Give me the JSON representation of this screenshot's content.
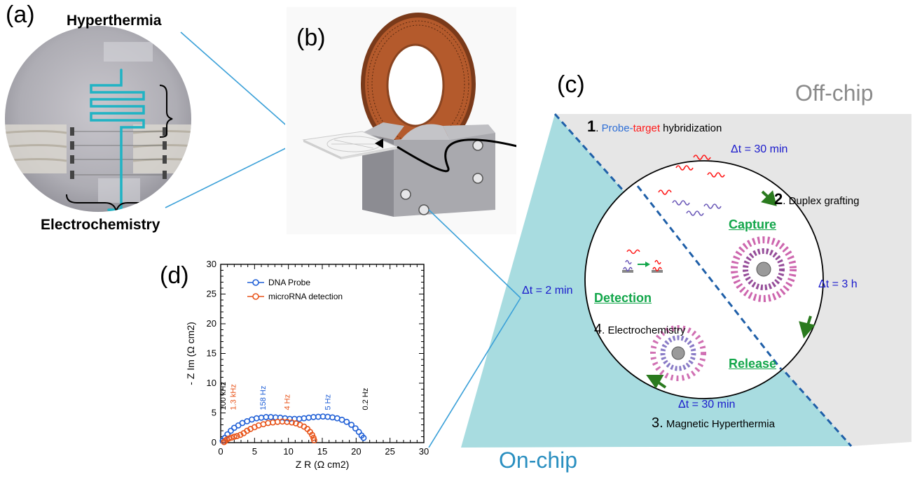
{
  "panels": {
    "a": {
      "label": "(a)",
      "top_label": "Hyperthermia",
      "bottom_label": "Electrochemistry"
    },
    "b": {
      "label": "(b)"
    },
    "c": {
      "label": "(c)",
      "off_chip": "Off-chip",
      "on_chip": "On-chip",
      "step1": {
        "num": "1",
        "probe": "Probe",
        "dash": "-",
        "target": "target",
        "rest": " hybridization"
      },
      "step2": {
        "num": "2",
        "text": ". Duplex grafting"
      },
      "step3": {
        "num": "3.",
        "text": " Magnetic Hyperthermia"
      },
      "step4": {
        "num": "4",
        "text": ". Electrochemistry"
      },
      "capture": "Capture",
      "release": "Release",
      "detection": "Detection",
      "dt1": "Δt = 30 min",
      "dt2": "Δt = 3 h",
      "dt3": "Δt = 30 min",
      "dt4": "Δt = 2 min",
      "colors": {
        "blue_text": "#1a1acc",
        "green_text": "#12a64a",
        "arrow_green": "#2a7a1e",
        "probe_blue": "#2f6fd6",
        "target_red": "#ff1a1a",
        "on_chip_fill": "#a8dce0",
        "off_chip_fill": "#e6e6e6",
        "dash_blue": "#1f5fa8"
      }
    },
    "d": {
      "label": "(d)"
    }
  },
  "chart_data": {
    "type": "scatter",
    "xlabel": "Z R (Ω cm2)",
    "ylabel": "- Z Im (Ω cm2)",
    "xlim": [
      0,
      30
    ],
    "ylim": [
      0,
      30
    ],
    "xticks": [
      "0",
      "5",
      "10",
      "15",
      "20",
      "25",
      "30"
    ],
    "yticks": [
      "0",
      "5",
      "10",
      "15",
      "20",
      "25",
      "30"
    ],
    "legend_position": "top-left",
    "series": [
      {
        "name": "DNA Probe",
        "color": "#1f5fd6",
        "points": [
          [
            0.3,
            0.3
          ],
          [
            0.6,
            0.8
          ],
          [
            1.0,
            1.4
          ],
          [
            1.5,
            2.0
          ],
          [
            2.0,
            2.5
          ],
          [
            2.6,
            2.9
          ],
          [
            3.2,
            3.3
          ],
          [
            3.9,
            3.6
          ],
          [
            4.6,
            3.9
          ],
          [
            5.3,
            4.1
          ],
          [
            6.0,
            4.2
          ],
          [
            6.7,
            4.3
          ],
          [
            7.4,
            4.3
          ],
          [
            8.1,
            4.25
          ],
          [
            8.8,
            4.2
          ],
          [
            9.5,
            4.1
          ],
          [
            10.2,
            4.0
          ],
          [
            10.9,
            4.0
          ],
          [
            11.6,
            4.0
          ],
          [
            12.3,
            4.1
          ],
          [
            13.0,
            4.2
          ],
          [
            13.7,
            4.3
          ],
          [
            14.4,
            4.35
          ],
          [
            15.1,
            4.4
          ],
          [
            15.8,
            4.35
          ],
          [
            16.5,
            4.25
          ],
          [
            17.2,
            4.1
          ],
          [
            17.9,
            3.85
          ],
          [
            18.6,
            3.5
          ],
          [
            19.3,
            3.0
          ],
          [
            19.9,
            2.4
          ],
          [
            20.4,
            1.8
          ],
          [
            20.8,
            1.2
          ],
          [
            21.1,
            0.8
          ]
        ]
      },
      {
        "name": "microRNA detection",
        "color": "#e8541a",
        "points": [
          [
            0.5,
            0.1
          ],
          [
            0.7,
            0.3
          ],
          [
            0.9,
            0.5
          ],
          [
            1.2,
            0.7
          ],
          [
            1.6,
            0.85
          ],
          [
            2.0,
            1.0
          ],
          [
            2.4,
            1.1
          ],
          [
            2.9,
            1.3
          ],
          [
            3.4,
            1.6
          ],
          [
            3.9,
            2.0
          ],
          [
            4.4,
            2.3
          ],
          [
            5.0,
            2.6
          ],
          [
            5.6,
            2.9
          ],
          [
            6.3,
            3.1
          ],
          [
            7.0,
            3.3
          ],
          [
            7.7,
            3.4
          ],
          [
            8.4,
            3.5
          ],
          [
            9.1,
            3.55
          ],
          [
            9.8,
            3.5
          ],
          [
            10.5,
            3.4
          ],
          [
            11.1,
            3.25
          ],
          [
            11.7,
            3.0
          ],
          [
            12.3,
            2.7
          ],
          [
            12.8,
            2.3
          ],
          [
            13.2,
            1.8
          ],
          [
            13.5,
            1.3
          ],
          [
            13.7,
            0.8
          ],
          [
            13.8,
            0.4
          ]
        ]
      }
    ],
    "annotations": [
      {
        "text": "100 kHz",
        "x": 0.3,
        "color": "#000000"
      },
      {
        "text": "1.3 kHz",
        "x": 1.8,
        "color": "#e8541a"
      },
      {
        "text": "158 Hz",
        "x": 6.2,
        "color": "#1f5fd6"
      },
      {
        "text": "4 Hz",
        "x": 9.8,
        "color": "#e8541a"
      },
      {
        "text": "5 Hz",
        "x": 15.8,
        "color": "#1f5fd6"
      },
      {
        "text": "0.2 Hz",
        "x": 21.3,
        "color": "#000000"
      }
    ]
  }
}
